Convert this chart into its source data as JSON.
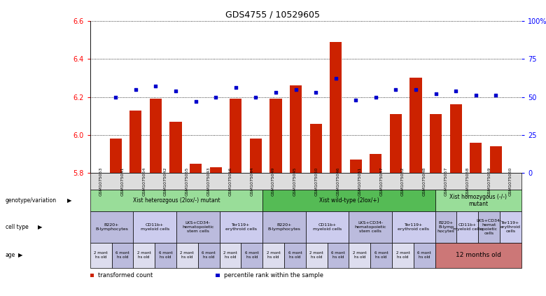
{
  "title": "GDS4755 / 10529605",
  "samples": [
    "GSM1075053",
    "GSM1075041",
    "GSM1075054",
    "GSM1075042",
    "GSM1075055",
    "GSM1075043",
    "GSM1075056",
    "GSM1075044",
    "GSM1075049",
    "GSM1075045",
    "GSM1075050",
    "GSM1075046",
    "GSM1075051",
    "GSM1075047",
    "GSM1075052",
    "GSM1075048",
    "GSM1075057",
    "GSM1075058",
    "GSM1075059",
    "GSM1075060"
  ],
  "bar_values": [
    5.98,
    6.13,
    6.19,
    6.07,
    5.85,
    5.83,
    6.19,
    5.98,
    6.19,
    6.26,
    6.06,
    6.49,
    5.87,
    5.9,
    6.11,
    6.3,
    6.11,
    6.16,
    5.96,
    5.94
  ],
  "dot_values": [
    50,
    55,
    57,
    54,
    47,
    50,
    56,
    50,
    53,
    55,
    53,
    62,
    48,
    50,
    55,
    55,
    52,
    54,
    51,
    51
  ],
  "ylim": [
    5.8,
    6.6
  ],
  "yticks": [
    5.8,
    6.0,
    6.2,
    6.4,
    6.6
  ],
  "y2lim": [
    0,
    100
  ],
  "y2ticks": [
    0,
    25,
    50,
    75,
    100
  ],
  "y2ticklabels": [
    "0",
    "25",
    "50",
    "75",
    "100%"
  ],
  "bar_color": "#cc2200",
  "dot_color": "#0000cc",
  "bar_width": 0.6,
  "genotype_groups": [
    {
      "label": "Xist heterozgous (2lox/-) mutant",
      "start": 0,
      "end": 8,
      "color": "#99dd99"
    },
    {
      "label": "Xist wild-type (2lox/+)",
      "start": 8,
      "end": 16,
      "color": "#55bb55"
    },
    {
      "label": "Xist homozygous (-/-)\nmutant",
      "start": 16,
      "end": 20,
      "color": "#99dd99"
    }
  ],
  "cell_type_groups": [
    {
      "label": "B220+\nB-lymphocytes",
      "start": 0,
      "end": 2,
      "color": "#bbbbdd"
    },
    {
      "label": "CD11b+\nmyeloid cells",
      "start": 2,
      "end": 4,
      "color": "#ccccee"
    },
    {
      "label": "LKS+CD34-\nhematopoietic\nstem cells",
      "start": 4,
      "end": 6,
      "color": "#bbbbdd"
    },
    {
      "label": "Ter119+\nerythroid cells",
      "start": 6,
      "end": 8,
      "color": "#ccccee"
    },
    {
      "label": "B220+\nB-lymphocytes",
      "start": 8,
      "end": 10,
      "color": "#bbbbdd"
    },
    {
      "label": "CD11b+\nmyeloid cells",
      "start": 10,
      "end": 12,
      "color": "#ccccee"
    },
    {
      "label": "LKS+CD34-\nhematopoietic\nstem cells",
      "start": 12,
      "end": 14,
      "color": "#bbbbdd"
    },
    {
      "label": "Ter119+\nerythroid cells",
      "start": 14,
      "end": 16,
      "color": "#ccccee"
    },
    {
      "label": "B220+\nB-lymp\nhocytes",
      "start": 16,
      "end": 17,
      "color": "#bbbbdd"
    },
    {
      "label": "CD11b+\nmyeloid cells",
      "start": 17,
      "end": 18,
      "color": "#ccccee"
    },
    {
      "label": "LKS+CD34-\nhemat\nopoietic\ncells",
      "start": 18,
      "end": 19,
      "color": "#bbbbdd"
    },
    {
      "label": "Ter119+\nerythroid\ncells",
      "start": 19,
      "end": 20,
      "color": "#ccccee"
    }
  ],
  "age_groups_left": [
    {
      "label": "2 mont\nhs old",
      "start": 0,
      "end": 1,
      "color": "#ddddee"
    },
    {
      "label": "6 mont\nhs old",
      "start": 1,
      "end": 2,
      "color": "#bbbbdd"
    },
    {
      "label": "2 mont\nhs old",
      "start": 2,
      "end": 3,
      "color": "#ddddee"
    },
    {
      "label": "6 mont\nhs old",
      "start": 3,
      "end": 4,
      "color": "#bbbbdd"
    },
    {
      "label": "2 mont\nhs old",
      "start": 4,
      "end": 5,
      "color": "#ddddee"
    },
    {
      "label": "6 mont\nhs old",
      "start": 5,
      "end": 6,
      "color": "#bbbbdd"
    },
    {
      "label": "2 mont\nhs old",
      "start": 6,
      "end": 7,
      "color": "#ddddee"
    },
    {
      "label": "6 mont\nhs old",
      "start": 7,
      "end": 8,
      "color": "#bbbbdd"
    },
    {
      "label": "2 mont\nhs old",
      "start": 8,
      "end": 9,
      "color": "#ddddee"
    },
    {
      "label": "6 mont\nhs old",
      "start": 9,
      "end": 10,
      "color": "#bbbbdd"
    },
    {
      "label": "2 mont\nhs old",
      "start": 10,
      "end": 11,
      "color": "#ddddee"
    },
    {
      "label": "6 mont\nhs old",
      "start": 11,
      "end": 12,
      "color": "#bbbbdd"
    },
    {
      "label": "2 mont\nhs old",
      "start": 12,
      "end": 13,
      "color": "#ddddee"
    },
    {
      "label": "6 mont\nhs old",
      "start": 13,
      "end": 14,
      "color": "#bbbbdd"
    },
    {
      "label": "2 mont\nhs old",
      "start": 14,
      "end": 15,
      "color": "#ddddee"
    },
    {
      "label": "6 mont\nhs old",
      "start": 15,
      "end": 16,
      "color": "#bbbbdd"
    }
  ],
  "age_group_right": {
    "label": "12 months old",
    "start": 16,
    "end": 20,
    "color": "#cc7777"
  },
  "legend_items": [
    {
      "color": "#cc2200",
      "label": "transformed count"
    },
    {
      "color": "#0000cc",
      "label": "percentile rank within the sample"
    }
  ],
  "left_labels": [
    "genotype/variation",
    "cell type",
    "age"
  ],
  "background_color": "#ffffff"
}
